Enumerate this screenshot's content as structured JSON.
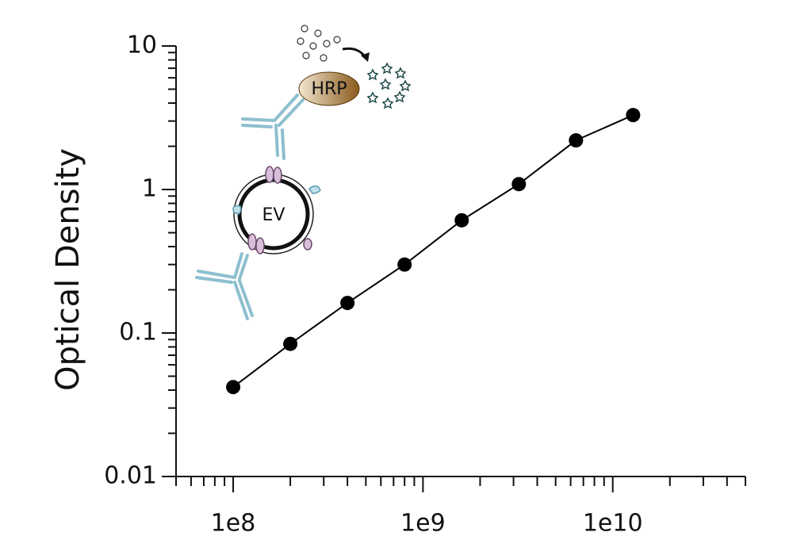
{
  "chart_data": {
    "type": "scatter",
    "ylabel": "Optical Density",
    "annotations": [
      "HRP",
      "EV"
    ],
    "xscale": "log",
    "yscale": "log",
    "xlim": [
      50000000,
      50000000000
    ],
    "ylim": [
      0.01,
      10
    ],
    "xticks": [
      {
        "value": 100000000,
        "label": "1e8"
      },
      {
        "value": 1000000000,
        "label": "1e9"
      },
      {
        "value": 10000000000,
        "label": "1e10"
      }
    ],
    "yticks": [
      0.01,
      0.1,
      1,
      10
    ],
    "series": [
      {
        "color": "#000000",
        "x": [
          100000000,
          200000000,
          400000000,
          800000000,
          1600000000,
          3200000000,
          6400000000,
          12800000000
        ],
        "values": [
          0.042,
          0.084,
          0.162,
          0.3,
          0.61,
          1.09,
          2.2,
          3.3
        ]
      }
    ]
  }
}
